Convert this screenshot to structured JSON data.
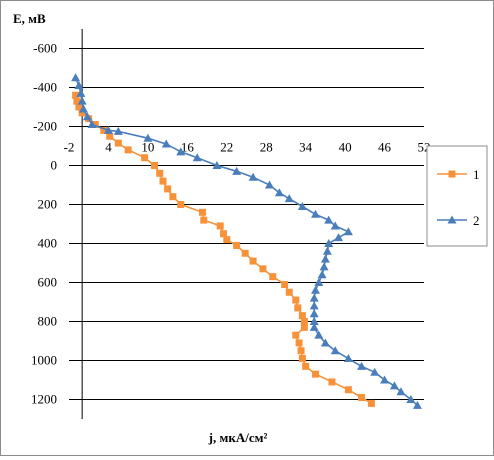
{
  "chart_data": {
    "type": "scatter",
    "ylabel": "E, мВ",
    "xlabel": "j, мкА/см²",
    "y_ticks": [
      "-600",
      "-400",
      "-200",
      "0",
      "200",
      "400",
      "600",
      "800",
      "1000",
      "1200"
    ],
    "x_ticks": [
      "-2",
      "4",
      "10",
      "16",
      "22",
      "28",
      "34",
      "40",
      "46",
      "52"
    ],
    "ylim": [
      -700,
      1300
    ],
    "xlim": [
      -2,
      52
    ],
    "y_inverted": true,
    "grid": "horizontal",
    "legend_position": "right",
    "series": [
      {
        "name": "1",
        "color": "#F7923A",
        "marker": "square",
        "points": [
          [
            -1.0,
            -360
          ],
          [
            -0.8,
            -330
          ],
          [
            -0.5,
            -300
          ],
          [
            0.0,
            -270
          ],
          [
            1.0,
            -240
          ],
          [
            2.0,
            -210
          ],
          [
            3.3,
            -180
          ],
          [
            4.2,
            -150
          ],
          [
            5.5,
            -115
          ],
          [
            7.0,
            -80
          ],
          [
            9.5,
            -40
          ],
          [
            11.0,
            0
          ],
          [
            11.8,
            40
          ],
          [
            12.3,
            80
          ],
          [
            13.0,
            120
          ],
          [
            13.8,
            160
          ],
          [
            15.0,
            200
          ],
          [
            18.3,
            240
          ],
          [
            18.5,
            280
          ],
          [
            21.0,
            310
          ],
          [
            21.5,
            350
          ],
          [
            22.0,
            380
          ],
          [
            23.5,
            410
          ],
          [
            24.8,
            450
          ],
          [
            26.0,
            490
          ],
          [
            27.5,
            530
          ],
          [
            29.0,
            570
          ],
          [
            30.8,
            610
          ],
          [
            31.5,
            650
          ],
          [
            32.5,
            690
          ],
          [
            32.8,
            730
          ],
          [
            33.5,
            770
          ],
          [
            33.8,
            800
          ],
          [
            33.8,
            830
          ],
          [
            32.5,
            870
          ],
          [
            33.0,
            910
          ],
          [
            33.3,
            950
          ],
          [
            33.5,
            990
          ],
          [
            34.0,
            1030
          ],
          [
            35.5,
            1070
          ],
          [
            38.0,
            1110
          ],
          [
            40.5,
            1150
          ],
          [
            42.5,
            1190
          ],
          [
            44.0,
            1220
          ]
        ]
      },
      {
        "name": "2",
        "color": "#4A7EBB",
        "marker": "triangle",
        "points": [
          [
            -1.0,
            -450
          ],
          [
            -0.5,
            -410
          ],
          [
            -0.2,
            -370
          ],
          [
            0.0,
            -330
          ],
          [
            0.2,
            -290
          ],
          [
            0.8,
            -250
          ],
          [
            1.5,
            -210
          ],
          [
            4.0,
            -180
          ],
          [
            5.5,
            -175
          ],
          [
            10.0,
            -140
          ],
          [
            12.8,
            -110
          ],
          [
            15.0,
            -70
          ],
          [
            17.5,
            -40
          ],
          [
            20.5,
            0
          ],
          [
            23.5,
            30
          ],
          [
            26.0,
            60
          ],
          [
            28.5,
            100
          ],
          [
            30.0,
            140
          ],
          [
            31.5,
            170
          ],
          [
            33.5,
            210
          ],
          [
            35.5,
            250
          ],
          [
            37.5,
            280
          ],
          [
            38.5,
            310
          ],
          [
            40.5,
            340
          ],
          [
            39.0,
            370
          ],
          [
            37.5,
            400
          ],
          [
            37.3,
            440
          ],
          [
            37.0,
            480
          ],
          [
            36.8,
            520
          ],
          [
            36.5,
            560
          ],
          [
            36.0,
            600
          ],
          [
            35.5,
            640
          ],
          [
            35.3,
            680
          ],
          [
            35.3,
            720
          ],
          [
            35.3,
            760
          ],
          [
            35.3,
            800
          ],
          [
            35.3,
            830
          ],
          [
            36.0,
            870
          ],
          [
            37.0,
            910
          ],
          [
            38.5,
            950
          ],
          [
            40.5,
            990
          ],
          [
            42.5,
            1030
          ],
          [
            44.5,
            1060
          ],
          [
            46.0,
            1100
          ],
          [
            47.5,
            1130
          ],
          [
            48.5,
            1160
          ],
          [
            50.0,
            1200
          ],
          [
            51.0,
            1230
          ]
        ]
      }
    ]
  }
}
